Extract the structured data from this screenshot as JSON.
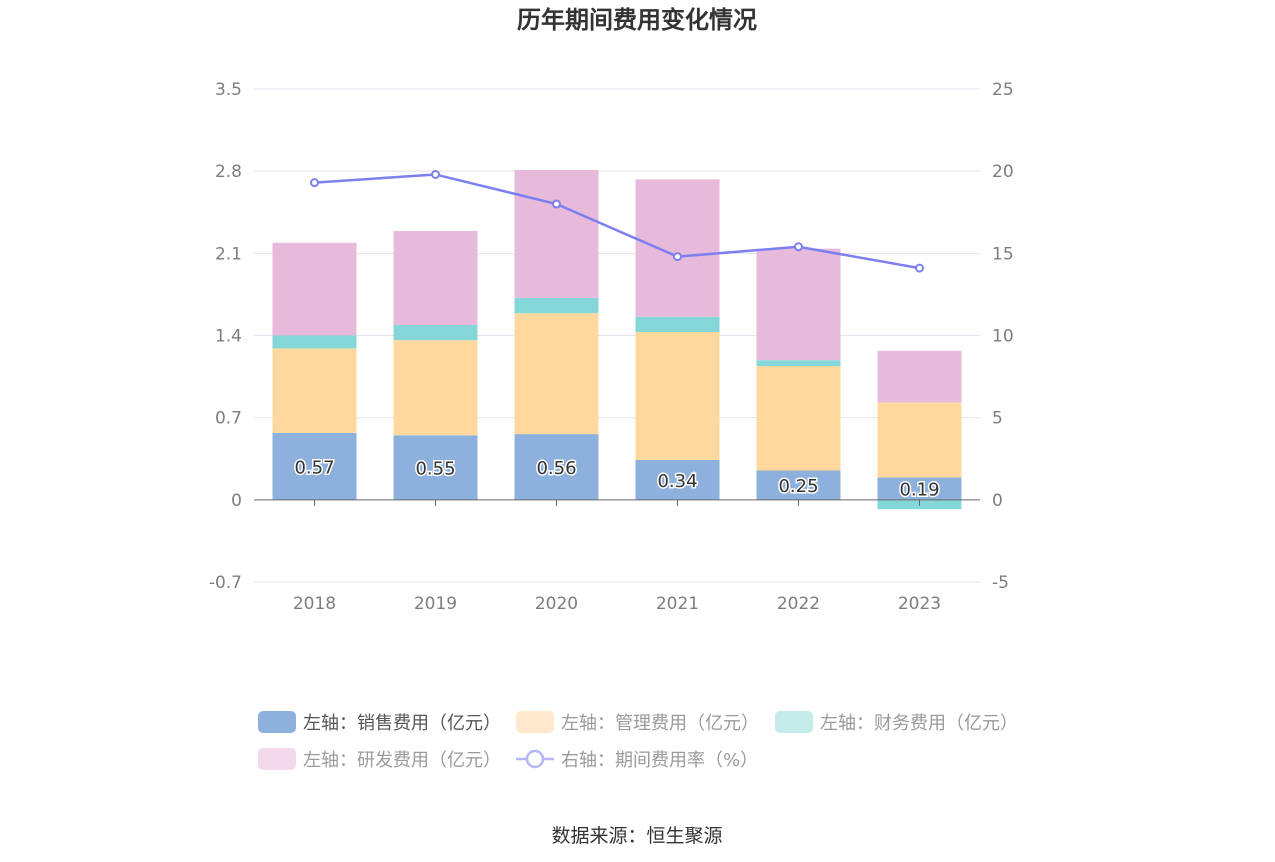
{
  "title": "历年期间费用变化情况",
  "source": "数据来源：恒生聚源",
  "colors": {
    "sales": "#8eb0dd",
    "admin": "#fed89c",
    "finance": "#84d6d8",
    "rd": "#e7b9da",
    "line": "#7b7ff0",
    "grid": "#e1e4ef",
    "axis": "#666666"
  },
  "legend": [
    {
      "label": "左轴：销售费用（亿元）",
      "color": "#8eb0dd",
      "kind": "box",
      "active": true
    },
    {
      "label": "左轴：管理费用（亿元）",
      "color": "#ffe8cc",
      "kind": "box",
      "active": false
    },
    {
      "label": "左轴：财务费用（亿元）",
      "color": "#c4eaea",
      "kind": "box",
      "active": false
    },
    {
      "label": "左轴：研发费用（亿元）",
      "color": "#f2d9eb",
      "kind": "box",
      "active": false
    },
    {
      "label": "右轴：期间费用率（%）",
      "color": "#b4b6f6",
      "kind": "line",
      "active": false
    }
  ],
  "chart_data": {
    "type": "bar",
    "stacked": true,
    "categories": [
      "2018",
      "2019",
      "2020",
      "2021",
      "2022",
      "2023"
    ],
    "left_axis": {
      "min": -0.7,
      "max": 3.5,
      "ticks": [
        "3.5",
        "2.8",
        "2.1",
        "1.4",
        "0.7",
        "0",
        "-0.7"
      ]
    },
    "right_axis": {
      "min": -5,
      "max": 25,
      "ticks": [
        "25",
        "20",
        "15",
        "10",
        "5",
        "0",
        "-5"
      ]
    },
    "series": [
      {
        "name": "左轴：销售费用（亿元）",
        "axis": "left",
        "type": "bar",
        "values": [
          0.57,
          0.55,
          0.56,
          0.34,
          0.25,
          0.19
        ],
        "labels": [
          "0.57",
          "0.55",
          "0.56",
          "0.34",
          "0.25",
          "0.19"
        ]
      },
      {
        "name": "左轴：管理费用（亿元）",
        "axis": "left",
        "type": "bar",
        "values": [
          0.72,
          0.81,
          1.03,
          1.09,
          0.89,
          0.64
        ]
      },
      {
        "name": "左轴：财务费用（亿元）",
        "axis": "left",
        "type": "bar",
        "values": [
          0.11,
          0.13,
          0.13,
          0.13,
          0.05,
          -0.08
        ]
      },
      {
        "name": "左轴：研发费用（亿元）",
        "axis": "left",
        "type": "bar",
        "values": [
          0.79,
          0.8,
          1.09,
          1.17,
          0.95,
          0.44
        ]
      },
      {
        "name": "右轴：期间费用率（%）",
        "axis": "right",
        "type": "line",
        "values": [
          19.3,
          19.8,
          18.0,
          14.8,
          15.4,
          14.1
        ]
      }
    ],
    "grid": true,
    "legend_position": "bottom"
  }
}
